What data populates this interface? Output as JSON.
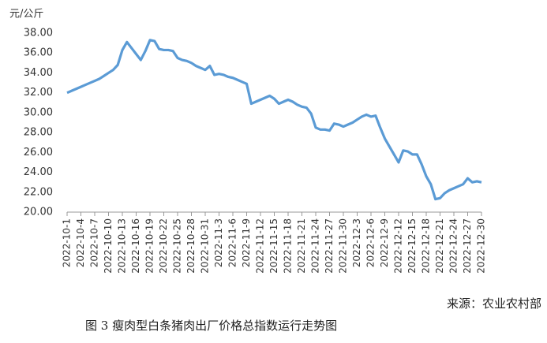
{
  "chart_data": {
    "type": "line",
    "y_label": "元/公斤",
    "source": "来源：农业农村部",
    "caption": "图 3 瘦肉型白条猪肉出厂价格总指数运行走势图",
    "categories": [
      "2022-10-1",
      null,
      null,
      "2022-10-4",
      null,
      null,
      "2022-10-7",
      null,
      null,
      "2022-10-10",
      null,
      null,
      "2022-10-13",
      null,
      null,
      "2022-10-16",
      null,
      null,
      "2022-10-19",
      null,
      null,
      "2022-10-22",
      null,
      null,
      "2022-10-25",
      null,
      null,
      "2022-10-28",
      null,
      null,
      "2022-10-31",
      null,
      null,
      "2022-11-3",
      null,
      null,
      "2022-11-6",
      null,
      null,
      "2022-11-9",
      null,
      null,
      "2022-11-12",
      null,
      null,
      "2022-11-15",
      null,
      null,
      "2022-11-18",
      null,
      null,
      "2022-11-21",
      null,
      null,
      "2022-11-24",
      null,
      null,
      "2022-11-27",
      null,
      null,
      "2022-11-30",
      null,
      null,
      "2022-12-3",
      null,
      null,
      "2022-12-6",
      null,
      null,
      "2022-12-9",
      null,
      null,
      "2022-12-12",
      null,
      null,
      "2022-12-15",
      null,
      null,
      "2022-12-18",
      null,
      null,
      "2022-12-21",
      null,
      null,
      "2022-12-24",
      null,
      null,
      "2022-12-27",
      null,
      null,
      "2022-12-30"
    ],
    "values": [
      32.0,
      32.2,
      32.4,
      32.6,
      32.8,
      33.0,
      33.2,
      33.4,
      33.7,
      34.0,
      34.3,
      34.8,
      36.3,
      37.1,
      36.5,
      35.9,
      35.3,
      36.2,
      37.3,
      37.2,
      36.4,
      36.3,
      36.3,
      36.2,
      35.5,
      35.3,
      35.2,
      35.0,
      34.7,
      34.5,
      34.3,
      34.7,
      33.8,
      33.9,
      33.8,
      33.6,
      33.5,
      33.3,
      33.1,
      32.9,
      30.9,
      31.1,
      31.3,
      31.5,
      31.7,
      31.4,
      30.9,
      31.1,
      31.3,
      31.1,
      30.8,
      30.6,
      30.5,
      29.9,
      28.5,
      28.3,
      28.3,
      28.2,
      28.9,
      28.8,
      28.6,
      28.8,
      29.0,
      29.3,
      29.6,
      29.8,
      29.6,
      29.7,
      28.5,
      27.4,
      26.6,
      25.8,
      25.0,
      26.2,
      26.1,
      25.8,
      25.8,
      24.8,
      23.6,
      22.8,
      21.3,
      21.4,
      21.9,
      22.2,
      22.4,
      22.6,
      22.8,
      23.4,
      23.0,
      23.1,
      23.0
    ],
    "color": "#5b9bd5",
    "ylim": [
      20,
      38
    ],
    "yticks": [
      {
        "value": 20,
        "label": "20.00"
      },
      {
        "value": 22,
        "label": "22.00"
      },
      {
        "value": 24,
        "label": "24.00"
      },
      {
        "value": 26,
        "label": "26.00"
      },
      {
        "value": 28,
        "label": "28.00"
      },
      {
        "value": 30,
        "label": "30.00"
      },
      {
        "value": 32,
        "label": "32.00"
      },
      {
        "value": 34,
        "label": "34.00"
      },
      {
        "value": 36,
        "label": "36.00"
      },
      {
        "value": 38,
        "label": "38.00"
      }
    ],
    "grid": false
  }
}
